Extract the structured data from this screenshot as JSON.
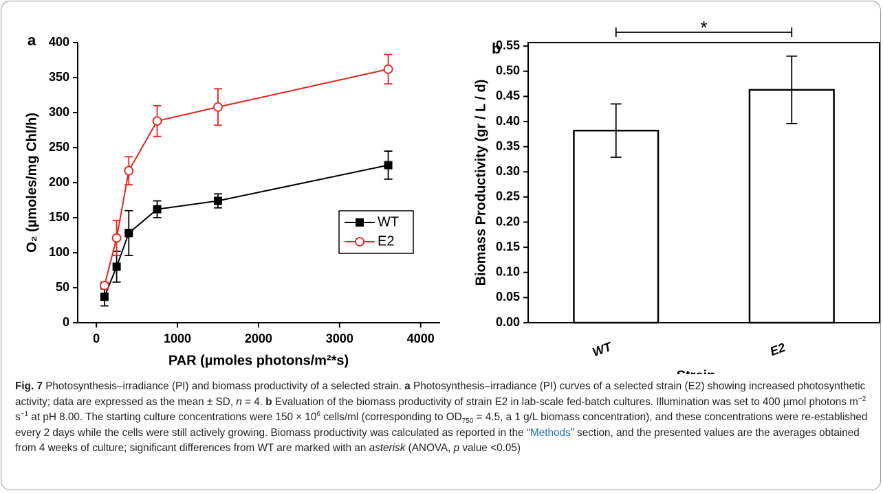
{
  "chart_data": [
    {
      "type": "line",
      "panel": "a",
      "xlabel": "PAR (µmoles photons/m²*s)",
      "ylabel": "O₂ (µmoles/mg Chl/h)",
      "x": [
        100,
        250,
        400,
        750,
        1500,
        3600
      ],
      "series": [
        {
          "name": "WT",
          "color": "#000000",
          "marker": "square",
          "values": [
            37,
            80,
            128,
            162,
            174,
            225
          ],
          "errors": [
            13,
            22,
            32,
            12,
            10,
            20
          ]
        },
        {
          "name": "E2",
          "color": "#e3241b",
          "marker": "circle-open",
          "values": [
            53,
            121,
            217,
            288,
            308,
            362
          ],
          "errors": [
            5,
            25,
            20,
            22,
            26,
            21
          ]
        }
      ],
      "xlim": [
        -230,
        4240
      ],
      "xticks": [
        0,
        1000,
        2000,
        3000,
        4000
      ],
      "ylim": [
        0,
        400
      ],
      "yticks": [
        0,
        50,
        100,
        150,
        200,
        250,
        300,
        350,
        400
      ],
      "legend": "center-right"
    },
    {
      "type": "bar",
      "panel": "b",
      "xlabel": "Strain",
      "ylabel": "Biomass Productivity (gr / L / d)",
      "categories": [
        "WT",
        "E2"
      ],
      "values": [
        0.382,
        0.463
      ],
      "errors": [
        0.053,
        0.067
      ],
      "color": "#ffffff",
      "annotation": "*",
      "ylim": [
        0,
        0.557
      ],
      "yticks": [
        {
          "value": 0,
          "label": "0.00"
        },
        {
          "value": 0.05,
          "label": "0.05"
        },
        {
          "value": 0.1,
          "label": "0.10"
        },
        {
          "value": 0.15,
          "label": "0.15"
        },
        {
          "value": 0.2,
          "label": "0.20"
        },
        {
          "value": 0.25,
          "label": "0.25"
        },
        {
          "value": 0.3,
          "label": "0.30"
        },
        {
          "value": 0.35,
          "label": "0.35"
        },
        {
          "value": 0.4,
          "label": "0.40"
        },
        {
          "value": 0.45,
          "label": "0.45"
        },
        {
          "value": 0.5,
          "label": "0.50"
        },
        {
          "value": 0.55,
          "label": "0.55"
        }
      ]
    }
  ],
  "caption": [
    {
      "text": "Fig. 7",
      "style": "b"
    },
    {
      "text": "  Photosynthesis–irradiance (PI) and biomass productivity of a selected strain. "
    },
    {
      "text": "a",
      "style": "b"
    },
    {
      "text": " Photosynthesis–irradiance (PI) curves of a selected strain (E2) showing increased photosynthetic activity; data are expressed as the mean ± SD, "
    },
    {
      "text": "n",
      "style": "i"
    },
    {
      "text": " = 4. "
    },
    {
      "text": "b",
      "style": "b"
    },
    {
      "text": " Evaluation of the biomass productivity of strain E2 in lab-scale fed-batch cultures. Illumination was set to 400 µmol photons m"
    },
    {
      "text": "−2",
      "style": "sup"
    },
    {
      "text": " s"
    },
    {
      "text": "−1",
      "style": "sup"
    },
    {
      "text": " at pH 8.00. The starting culture concentrations were 150 × 10"
    },
    {
      "text": "6",
      "style": "sup"
    },
    {
      "text": " cells/ml (corresponding to OD"
    },
    {
      "text": "750",
      "style": "sub"
    },
    {
      "text": " = 4.5, a 1 g/L biomass concentration), and these concentrations were re-established every 2 days while the cells were still actively growing. Biomass productivity was calculated as reported in the “"
    },
    {
      "text": "Methods",
      "style": "link"
    },
    {
      "text": "” section, and the presented values are the averages obtained from 4 weeks of culture; significant differences from WT are marked with an "
    },
    {
      "text": "asterisk",
      "style": "i"
    },
    {
      "text": " (ANOVA, "
    },
    {
      "text": "p",
      "style": "i"
    },
    {
      "text": " value <0.05)"
    }
  ]
}
